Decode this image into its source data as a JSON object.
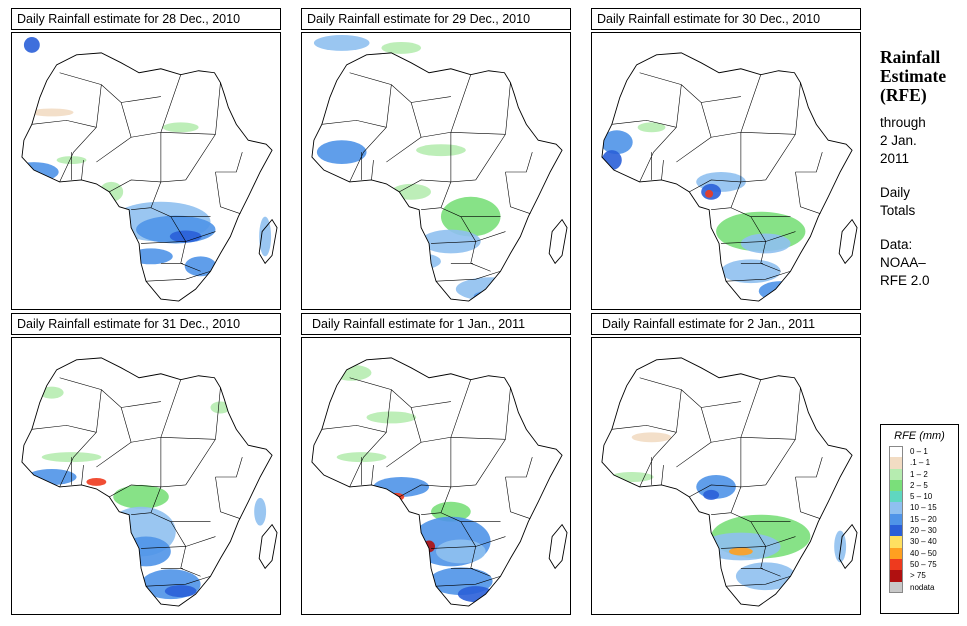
{
  "panels": [
    {
      "title": "Daily Rainfall estimate for  28 Dec., 2010"
    },
    {
      "title": "Daily Rainfall estimate for  29 Dec., 2010"
    },
    {
      "title": "Daily Rainfall estimate for  30 Dec., 2010"
    },
    {
      "title": "Daily Rainfall estimate for  31 Dec., 2010"
    },
    {
      "title": "Daily Rainfall estimate for  1 Jan., 2011"
    },
    {
      "title": "Daily Rainfall estimate for  2 Jan., 2011"
    }
  ],
  "sidebar": {
    "title_line1": "Rainfall",
    "title_line2": "Estimate",
    "title_line3": "(RFE)",
    "through_line1": "through",
    "through_line2": "2 Jan.",
    "through_line3": "2011",
    "totals_line1": "Daily",
    "totals_line2": "Totals",
    "data_line1": "Data:",
    "data_line2": "NOAA–",
    "data_line3": "RFE 2.0"
  },
  "legend": {
    "title": "RFE (mm)",
    "items": [
      {
        "label": "0 – 1",
        "color": "#ffffff"
      },
      {
        "label": ".1 – 1",
        "color": "#f2dcc3"
      },
      {
        "label": "1 – 2",
        "color": "#b6ecb0"
      },
      {
        "label": "2 – 5",
        "color": "#7adf7a"
      },
      {
        "label": "5 – 10",
        "color": "#5fd7c0"
      },
      {
        "label": "10 – 15",
        "color": "#8fc0f0"
      },
      {
        "label": "15 – 20",
        "color": "#4f94e8"
      },
      {
        "label": "20 – 30",
        "color": "#2a5fd8"
      },
      {
        "label": "30 – 40",
        "color": "#ffe060"
      },
      {
        "label": "40 – 50",
        "color": "#ffa020"
      },
      {
        "label": "50 – 75",
        "color": "#ee3a1e"
      },
      {
        "label": "> 75",
        "color": "#b01010"
      },
      {
        "label": "nodata",
        "color": "#c8c8c8"
      }
    ]
  }
}
